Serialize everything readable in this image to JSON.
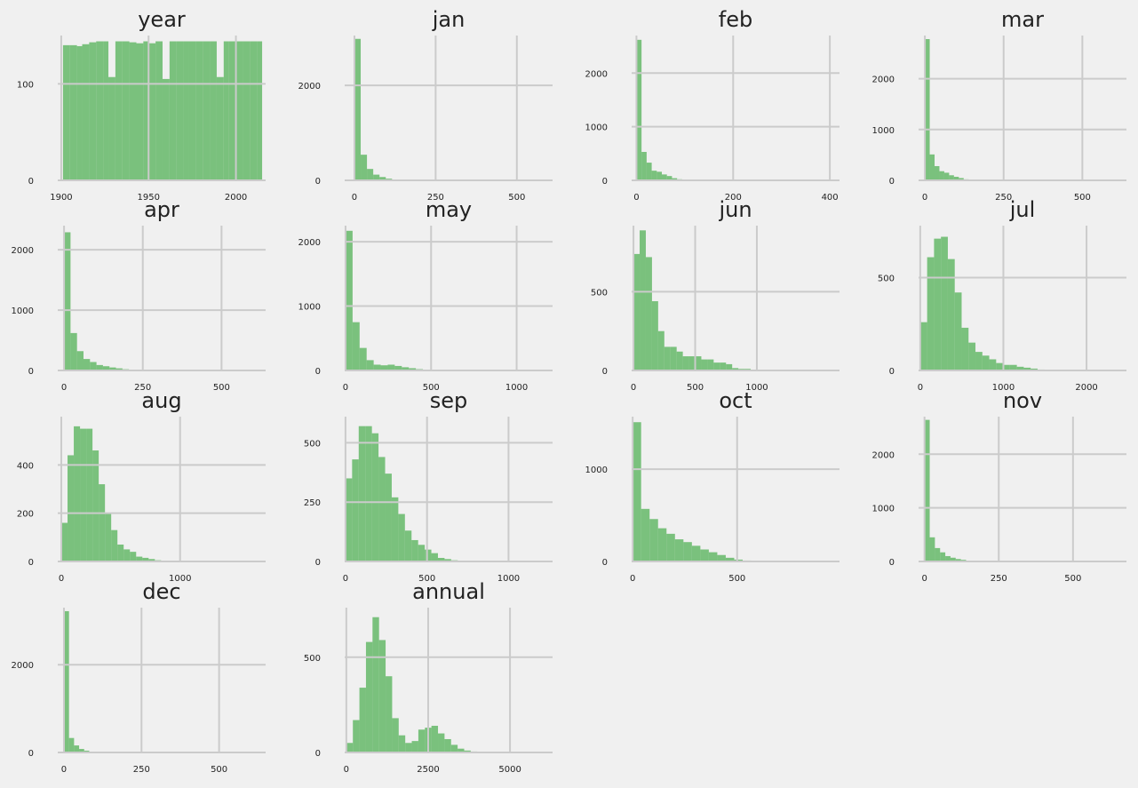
{
  "chart_data": [
    {
      "type": "bar",
      "title": "year",
      "xlim": [
        1898,
        2017
      ],
      "ylim": [
        0,
        150
      ],
      "xticks": [
        "1900",
        "1950",
        "2000"
      ],
      "xtick_values": [
        1900,
        1950,
        2000
      ],
      "yticks": [
        "0",
        "100"
      ],
      "ytick_values": [
        0,
        100
      ],
      "bin_edges": [
        1901,
        1905,
        1909,
        1912,
        1916,
        1920,
        1924,
        1927,
        1931,
        1935,
        1939,
        1943,
        1947,
        1950,
        1954,
        1958,
        1962,
        1966,
        1970,
        1973,
        1977,
        1981,
        1985,
        1989,
        1993,
        1996,
        2000,
        2004,
        2008,
        2012,
        2015
      ],
      "values": [
        140,
        140,
        139,
        141,
        143,
        144,
        144,
        107,
        144,
        144,
        143,
        142,
        144,
        142,
        144,
        105,
        144,
        144,
        144,
        144,
        144,
        144,
        144,
        107,
        144,
        144,
        144,
        144,
        144,
        144
      ],
      "color": "#4caf50",
      "grid": true
    },
    {
      "type": "bar",
      "title": "jan",
      "xlim": [
        -30,
        610
      ],
      "ylim": [
        0,
        3050
      ],
      "xticks": [
        "0",
        "250",
        "500"
      ],
      "xtick_values": [
        0,
        250,
        500
      ],
      "yticks": [
        "0",
        "2000"
      ],
      "ytick_values": [
        0,
        2000
      ],
      "bin_width": 19.3,
      "values": [
        2980,
        540,
        240,
        120,
        70,
        35,
        15,
        8,
        4,
        2,
        1,
        1
      ],
      "color": "#4caf50",
      "grid": true
    },
    {
      "type": "bar",
      "title": "feb",
      "xlim": [
        -10,
        420
      ],
      "ylim": [
        0,
        2700
      ],
      "xticks": [
        "0",
        "200",
        "400"
      ],
      "xtick_values": [
        0,
        200,
        400
      ],
      "yticks": [
        "0",
        "1000",
        "2000"
      ],
      "ytick_values": [
        0,
        1000,
        2000
      ],
      "bin_width": 10.5,
      "values": [
        2620,
        530,
        330,
        180,
        160,
        110,
        80,
        40,
        20,
        10,
        5,
        3,
        2,
        1
      ],
      "color": "#4caf50",
      "grid": true
    },
    {
      "type": "bar",
      "title": "mar",
      "xlim": [
        -20,
        640
      ],
      "ylim": [
        0,
        2850
      ],
      "xticks": [
        "0",
        "250",
        "500"
      ],
      "xtick_values": [
        0,
        250,
        500
      ],
      "yticks": [
        "0",
        "1000",
        "2000"
      ],
      "ytick_values": [
        0,
        1000,
        2000
      ],
      "bin_width": 15.4,
      "values": [
        2780,
        510,
        280,
        180,
        150,
        100,
        70,
        45,
        20,
        10,
        5,
        3,
        2
      ],
      "color": "#4caf50",
      "grid": true
    },
    {
      "type": "bar",
      "title": "apr",
      "xlim": [
        -20,
        640
      ],
      "ylim": [
        0,
        2400
      ],
      "xticks": [
        "0",
        "250",
        "500"
      ],
      "xtick_values": [
        0,
        250,
        500
      ],
      "yticks": [
        "0",
        "1000",
        "2000"
      ],
      "ytick_values": [
        0,
        1000,
        2000
      ],
      "bin_width": 20.6,
      "values": [
        2290,
        620,
        320,
        190,
        140,
        90,
        70,
        50,
        35,
        20,
        10,
        5,
        3
      ],
      "color": "#4caf50",
      "grid": true
    },
    {
      "type": "bar",
      "title": "may",
      "xlim": [
        -5,
        1210
      ],
      "ylim": [
        0,
        2250
      ],
      "xticks": [
        "0",
        "500",
        "1000"
      ],
      "xtick_values": [
        0,
        500,
        1000
      ],
      "yticks": [
        "0",
        "1000",
        "2000"
      ],
      "ytick_values": [
        0,
        1000,
        2000
      ],
      "bin_width": 41.1,
      "values": [
        2170,
        750,
        350,
        160,
        90,
        80,
        90,
        70,
        50,
        35,
        20,
        10,
        5,
        3,
        2
      ],
      "color": "#4caf50",
      "grid": true
    },
    {
      "type": "bar",
      "title": "jun",
      "xlim": [
        -15,
        1670
      ],
      "ylim": [
        0,
        920
      ],
      "xticks": [
        "0",
        "500",
        "1000"
      ],
      "xtick_values": [
        0,
        500,
        1000
      ],
      "yticks": [
        "0",
        "500"
      ],
      "ytick_values": [
        0,
        500
      ],
      "bin_width": 50,
      "values": [
        740,
        890,
        720,
        440,
        250,
        150,
        150,
        120,
        90,
        90,
        90,
        70,
        70,
        50,
        50,
        40,
        15,
        10,
        10,
        5,
        3,
        2
      ],
      "color": "#4caf50",
      "grid": true
    },
    {
      "type": "bar",
      "title": "jul",
      "xlim": [
        -20,
        2480
      ],
      "ylim": [
        0,
        780
      ],
      "xticks": [
        "0",
        "1000",
        "2000"
      ],
      "xtick_values": [
        0,
        1000,
        2000
      ],
      "yticks": [
        "0",
        "500"
      ],
      "ytick_values": [
        0,
        500
      ],
      "bin_width": 83,
      "values": [
        260,
        610,
        710,
        720,
        600,
        420,
        230,
        150,
        100,
        80,
        60,
        40,
        30,
        30,
        20,
        15,
        10,
        5
      ],
      "color": "#4caf50",
      "grid": true
    },
    {
      "type": "bar",
      "title": "aug",
      "xlim": [
        -30,
        1720
      ],
      "ylim": [
        0,
        600
      ],
      "xticks": [
        "0",
        "1000"
      ],
      "xtick_values": [
        0,
        1000
      ],
      "yticks": [
        "0",
        "200",
        "400"
      ],
      "ytick_values": [
        0,
        200,
        400
      ],
      "bin_width": 52.5,
      "values": [
        160,
        440,
        560,
        550,
        550,
        460,
        320,
        200,
        130,
        70,
        50,
        40,
        20,
        15,
        10,
        5,
        3,
        2,
        1
      ],
      "color": "#4caf50",
      "grid": true
    },
    {
      "type": "bar",
      "title": "sep",
      "xlim": [
        -5,
        1270
      ],
      "ylim": [
        0,
        610
      ],
      "xticks": [
        "0",
        "500",
        "1000"
      ],
      "xtick_values": [
        0,
        500,
        1000
      ],
      "yticks": [
        "0",
        "250",
        "500"
      ],
      "ytick_values": [
        0,
        250,
        500
      ],
      "bin_width": 40.5,
      "values": [
        350,
        430,
        570,
        570,
        540,
        440,
        370,
        270,
        200,
        130,
        90,
        70,
        50,
        35,
        15,
        10,
        5,
        3,
        1
      ],
      "color": "#4caf50",
      "grid": true
    },
    {
      "type": "bar",
      "title": "oct",
      "xlim": [
        -5,
        990
      ],
      "ylim": [
        0,
        1570
      ],
      "xticks": [
        "0",
        "500"
      ],
      "xtick_values": [
        0,
        500
      ],
      "yticks": [
        "0",
        "1000"
      ],
      "ytick_values": [
        0,
        1000
      ],
      "bin_width": 40.5,
      "values": [
        1510,
        570,
        460,
        360,
        300,
        240,
        210,
        170,
        130,
        100,
        70,
        40,
        20,
        10,
        5,
        3
      ],
      "color": "#4caf50",
      "grid": true
    },
    {
      "type": "bar",
      "title": "nov",
      "xlim": [
        -20,
        680
      ],
      "ylim": [
        0,
        2700
      ],
      "xticks": [
        "0",
        "250",
        "500"
      ],
      "xtick_values": [
        0,
        250,
        500
      ],
      "yticks": [
        "0",
        "1000",
        "2000"
      ],
      "ytick_values": [
        0,
        1000,
        2000
      ],
      "bin_width": 17.5,
      "values": [
        2640,
        450,
        250,
        170,
        100,
        70,
        45,
        30,
        15,
        10,
        5,
        3,
        2,
        1
      ],
      "color": "#4caf50",
      "grid": true
    },
    {
      "type": "bar",
      "title": "dec",
      "xlim": [
        -20,
        650
      ],
      "ylim": [
        0,
        3300
      ],
      "xticks": [
        "0",
        "250",
        "500"
      ],
      "xtick_values": [
        0,
        250,
        500
      ],
      "yticks": [
        "0",
        "2000"
      ],
      "ytick_values": [
        0,
        2000
      ],
      "bin_width": 16.3,
      "values": [
        3220,
        330,
        160,
        80,
        40,
        20,
        10,
        5,
        3,
        2
      ],
      "color": "#4caf50",
      "grid": true
    },
    {
      "type": "bar",
      "title": "annual",
      "xlim": [
        -50,
        6300
      ],
      "ylim": [
        0,
        760
      ],
      "xticks": [
        "0",
        "2500",
        "5000"
      ],
      "xtick_values": [
        0,
        2500,
        5000
      ],
      "yticks": [
        "0",
        "500"
      ],
      "ytick_values": [
        0,
        500
      ],
      "bin_width": 200,
      "values": [
        50,
        170,
        340,
        580,
        710,
        590,
        400,
        180,
        90,
        50,
        60,
        120,
        130,
        140,
        100,
        70,
        40,
        20,
        10,
        5
      ],
      "color": "#4caf50",
      "grid": true
    }
  ]
}
